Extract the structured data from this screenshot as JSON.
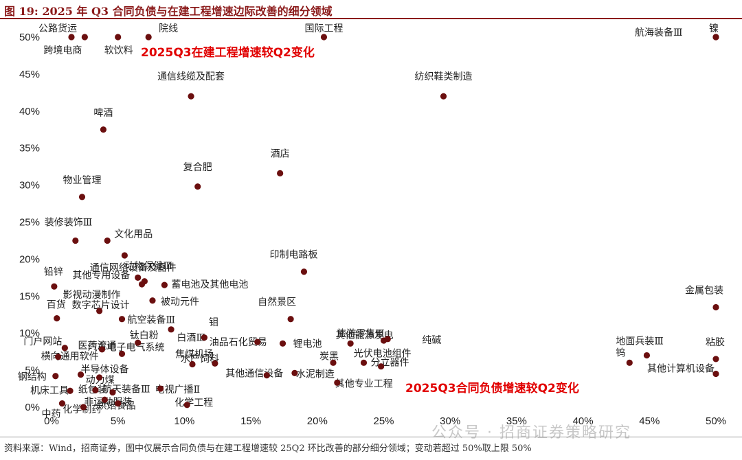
{
  "figure": {
    "title": "图 19:  2025 年 Q3 合同负债与在建工程增速边际改善的细分领域",
    "footer": "资料来源：Wind，招商证券，图中仅展示合同负债与在建工程增速较 25Q2 环比改善的部分细分领域；变动若超过 50%取上限 50%",
    "watermark": "公众号 · 招商证券策略研究"
  },
  "chart_data": {
    "type": "scatter",
    "xlabel": "2025Q3合同负债增速较Q2变化",
    "ylabel": "2025Q3在建工程增速较Q2变化",
    "xlim": [
      0,
      50
    ],
    "ylim": [
      0,
      50
    ],
    "x_ticks": [
      "0%",
      "5%",
      "10%",
      "15%",
      "20%",
      "25%",
      "30%",
      "35%",
      "40%",
      "45%",
      "50%"
    ],
    "y_ticks": [
      "0%",
      "5%",
      "10%",
      "15%",
      "20%",
      "25%",
      "30%",
      "35%",
      "40%",
      "45%",
      "50%"
    ],
    "grid": false,
    "marker_color": "#6b0f0f",
    "annotation_color": "#e10000",
    "points": [
      {
        "label": "公路货运",
        "x": 1.5,
        "y": 50
      },
      {
        "label": "跨境电商",
        "x": 2.5,
        "y": 50
      },
      {
        "label": "软饮料",
        "x": 5.0,
        "y": 50
      },
      {
        "label": "院线",
        "x": 7.3,
        "y": 50
      },
      {
        "label": "国际工程",
        "x": 20.5,
        "y": 50
      },
      {
        "label": "航海装备Ⅲ",
        "x": 50,
        "y": 50
      },
      {
        "label": "镍",
        "x": 50,
        "y": 50
      },
      {
        "label": "通信线缆及配套",
        "x": 10.5,
        "y": 42
      },
      {
        "label": "纺织鞋类制造",
        "x": 29.5,
        "y": 42
      },
      {
        "label": "啤酒",
        "x": 3.9,
        "y": 37.5
      },
      {
        "label": "酒店",
        "x": 17.2,
        "y": 31.6
      },
      {
        "label": "复合肥",
        "x": 11.0,
        "y": 29.8
      },
      {
        "label": "物业管理",
        "x": 2.3,
        "y": 28.4
      },
      {
        "label": "装修装饰Ⅲ",
        "x": 1.8,
        "y": 22.5
      },
      {
        "label": "文化用品",
        "x": 4.2,
        "y": 22.5
      },
      {
        "label": "动物保健Ⅲ",
        "x": 5.5,
        "y": 20.5
      },
      {
        "label": "印制电路板",
        "x": 19.0,
        "y": 18.3
      },
      {
        "label": "通信网络设备及器件",
        "x": 6.5,
        "y": 17.5
      },
      {
        "label": "其他专用设备",
        "x": 7.0,
        "y": 17.0
      },
      {
        "label": "铅锌",
        "x": 0.2,
        "y": 16.3
      },
      {
        "label": "蓄电池及其他电池",
        "x": 8.5,
        "y": 16.5
      },
      {
        "label": "影视动漫制作",
        "x": 6.8,
        "y": 16.6
      },
      {
        "label": "被动元件",
        "x": 7.6,
        "y": 14.4
      },
      {
        "label": "百货",
        "x": 0.4,
        "y": 12.0
      },
      {
        "label": "数字芯片设计",
        "x": 3.6,
        "y": 13.0
      },
      {
        "label": "航空装备Ⅲ",
        "x": 5.3,
        "y": 11.9
      },
      {
        "label": "金属包装",
        "x": 50,
        "y": 13.5
      },
      {
        "label": "自然景区",
        "x": 18.0,
        "y": 11.9
      },
      {
        "label": "钼",
        "x": 9.0,
        "y": 10.5
      },
      {
        "label": "旅游零售Ⅲ",
        "x": 22.5,
        "y": 8.6
      },
      {
        "label": "钛白粉",
        "x": 6.5,
        "y": 8.7
      },
      {
        "label": "白酒Ⅲ",
        "x": 11.5,
        "y": 9.4
      },
      {
        "label": "油品石化贸易",
        "x": 15.5,
        "y": 8.8
      },
      {
        "label": "锂电池",
        "x": 17.4,
        "y": 8.6
      },
      {
        "label": "其他能源发电",
        "x": 25.0,
        "y": 9.0
      },
      {
        "label": "纯碱",
        "x": 25.3,
        "y": 9.2
      },
      {
        "label": "地面兵装Ⅲ",
        "x": 44.8,
        "y": 7.0
      },
      {
        "label": "粘胶",
        "x": 50,
        "y": 6.5
      },
      {
        "label": "门户网站",
        "x": 1.0,
        "y": 8.0
      },
      {
        "label": "医药流通",
        "x": 3.8,
        "y": 7.8
      },
      {
        "label": "焦煤机场",
        "x": 10.6,
        "y": 5.8
      },
      {
        "label": "横向通用软件",
        "x": 0.5,
        "y": 6.8
      },
      {
        "label": "汽车电子电气系统",
        "x": 5.3,
        "y": 7.2
      },
      {
        "label": "炭黑",
        "x": 21.2,
        "y": 6.0
      },
      {
        "label": "分立器件",
        "x": 23.5,
        "y": 6.0
      },
      {
        "label": "光伏电池组件",
        "x": 24.8,
        "y": 5.5
      },
      {
        "label": "钨",
        "x": 43.5,
        "y": 6.0
      },
      {
        "label": "其他计算机设备",
        "x": 50,
        "y": 4.5
      },
      {
        "label": "水产饲料",
        "x": 12.3,
        "y": 5.9
      },
      {
        "label": "钢结构",
        "x": 0.3,
        "y": 4.2
      },
      {
        "label": "半导体设备",
        "x": 2.2,
        "y": 4.4
      },
      {
        "label": "动力煤",
        "x": 3.6,
        "y": 4.0
      },
      {
        "label": "其他通信设备",
        "x": 16.2,
        "y": 4.3
      },
      {
        "label": "电视广播Ⅱ",
        "x": 8.2,
        "y": 2.5
      },
      {
        "label": "其他专业工程",
        "x": 21.5,
        "y": 3.3
      },
      {
        "label": "水泥制造",
        "x": 18.3,
        "y": 4.6
      },
      {
        "label": "机床工具",
        "x": 1.4,
        "y": 2.2
      },
      {
        "label": "纸包装",
        "x": 3.3,
        "y": 2.3
      },
      {
        "label": "航天装备Ⅲ",
        "x": 4.6,
        "y": 2.0
      },
      {
        "label": "非运动服装",
        "x": 4.0,
        "y": 1.0
      },
      {
        "label": "烘焙食品",
        "x": 5.0,
        "y": 0.5
      },
      {
        "label": "化学工程",
        "x": 10.2,
        "y": 0.3
      },
      {
        "label": "化学制药",
        "x": 2.4,
        "y": 0.0
      },
      {
        "label": "中药",
        "x": 0.8,
        "y": 0.5
      }
    ]
  }
}
